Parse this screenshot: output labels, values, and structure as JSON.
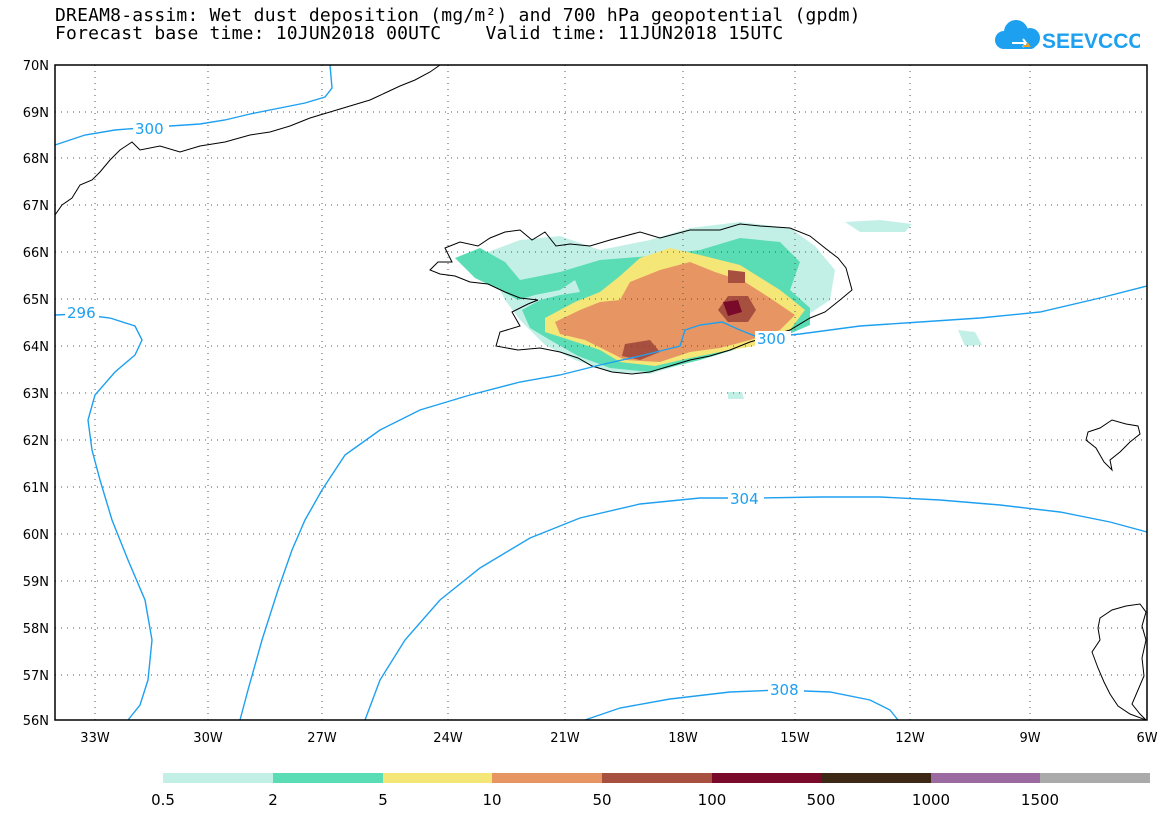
{
  "header": {
    "title_line1": "DREAM8-assim: Wet dust deposition (mg/m²) and 700 hPa geopotential (gpdm)",
    "title_line2": "Forecast base time: 10JUN2018 00UTC    Valid time: 11JUN2018 15UTC",
    "logo_text": "SEEVCCC",
    "logo_icon": "cloud-logo-icon"
  },
  "map": {
    "lat_labels": [
      "70N",
      "69N",
      "68N",
      "67N",
      "66N",
      "65N",
      "64N",
      "63N",
      "62N",
      "61N",
      "60N",
      "59N",
      "58N",
      "57N",
      "56N"
    ],
    "lon_labels": [
      "33W",
      "30W",
      "27W",
      "24W",
      "21W",
      "18W",
      "15W",
      "12W",
      "9W",
      "6W"
    ],
    "contour_labels": [
      "300",
      "296",
      "300",
      "304",
      "308"
    ],
    "contour_color": "#1ea0f0",
    "grid": "dotted"
  },
  "colorbar": {
    "labels": [
      "0.5",
      "2",
      "5",
      "10",
      "50",
      "100",
      "500",
      "1000",
      "1500"
    ],
    "colors": [
      "#c3f0e6",
      "#5adcb4",
      "#f5e678",
      "#e89564",
      "#a85040",
      "#7a0a2a",
      "#3c2814",
      "#9a6aa0",
      "#aaaaaa"
    ]
  }
}
